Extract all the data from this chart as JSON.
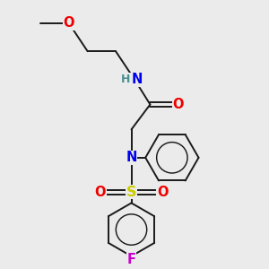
{
  "bg_color": "#ebebeb",
  "bond_color": "#1a1a1a",
  "atom_colors": {
    "N": "#0000ee",
    "O": "#ee0000",
    "S": "#cccc00",
    "F": "#cc00cc",
    "H": "#4a9090",
    "C": "#1a1a1a"
  },
  "bond_lw": 1.4,
  "font_size_atom": 10.5,
  "font_size_h": 9.0
}
